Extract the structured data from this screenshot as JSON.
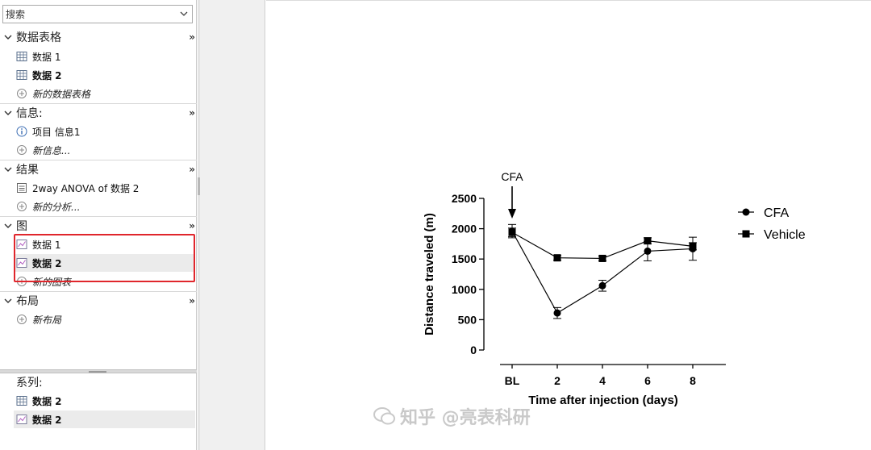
{
  "search": {
    "value": "搜索"
  },
  "sections": {
    "data_tables": {
      "title": "数据表格",
      "items": [
        {
          "label": "数据 1"
        },
        {
          "label": "数据 2"
        }
      ],
      "add_label": "新的数据表格"
    },
    "info": {
      "title": "信息:",
      "items": [
        {
          "label": "项目 信息1"
        }
      ],
      "add_label": "新信息..."
    },
    "results": {
      "title": "结果",
      "items": [
        {
          "label": "2way ANOVA of 数据 2"
        }
      ],
      "add_label": "新的分析..."
    },
    "graphs": {
      "title": "图",
      "items": [
        {
          "label": "数据 1"
        },
        {
          "label": "数据 2"
        }
      ],
      "add_label": "新的图表"
    },
    "layouts": {
      "title": "布局",
      "add_label": "新布局"
    }
  },
  "family": {
    "title": "系列:",
    "items": [
      {
        "label": "数据 2"
      },
      {
        "label": "数据 2"
      }
    ]
  },
  "more_glyph": "»",
  "watermark": "知乎 @亮表科研",
  "colors": {
    "highlight_box": "#e0262c",
    "selected_row": "#ebebeb"
  },
  "chart_data": {
    "type": "line",
    "annotation": "CFA",
    "xlabel": "Time after injection (days)",
    "ylabel": "Distance traveled (m)",
    "categories": [
      "BL",
      "2",
      "4",
      "6",
      "8"
    ],
    "yticks": [
      "0",
      "500",
      "1000",
      "1500",
      "2000",
      "2500"
    ],
    "ylim": [
      0,
      2500
    ],
    "legend_position": "right",
    "series": [
      {
        "name": "CFA",
        "marker": "circle",
        "values": [
          1960,
          610,
          1060,
          1630,
          1670
        ],
        "errors": [
          110,
          90,
          90,
          160,
          190
        ]
      },
      {
        "name": "Vehicle",
        "marker": "square",
        "values": [
          1940,
          1520,
          1510,
          1800,
          1710
        ],
        "errors": [
          70,
          40,
          40,
          50,
          60
        ]
      }
    ]
  }
}
